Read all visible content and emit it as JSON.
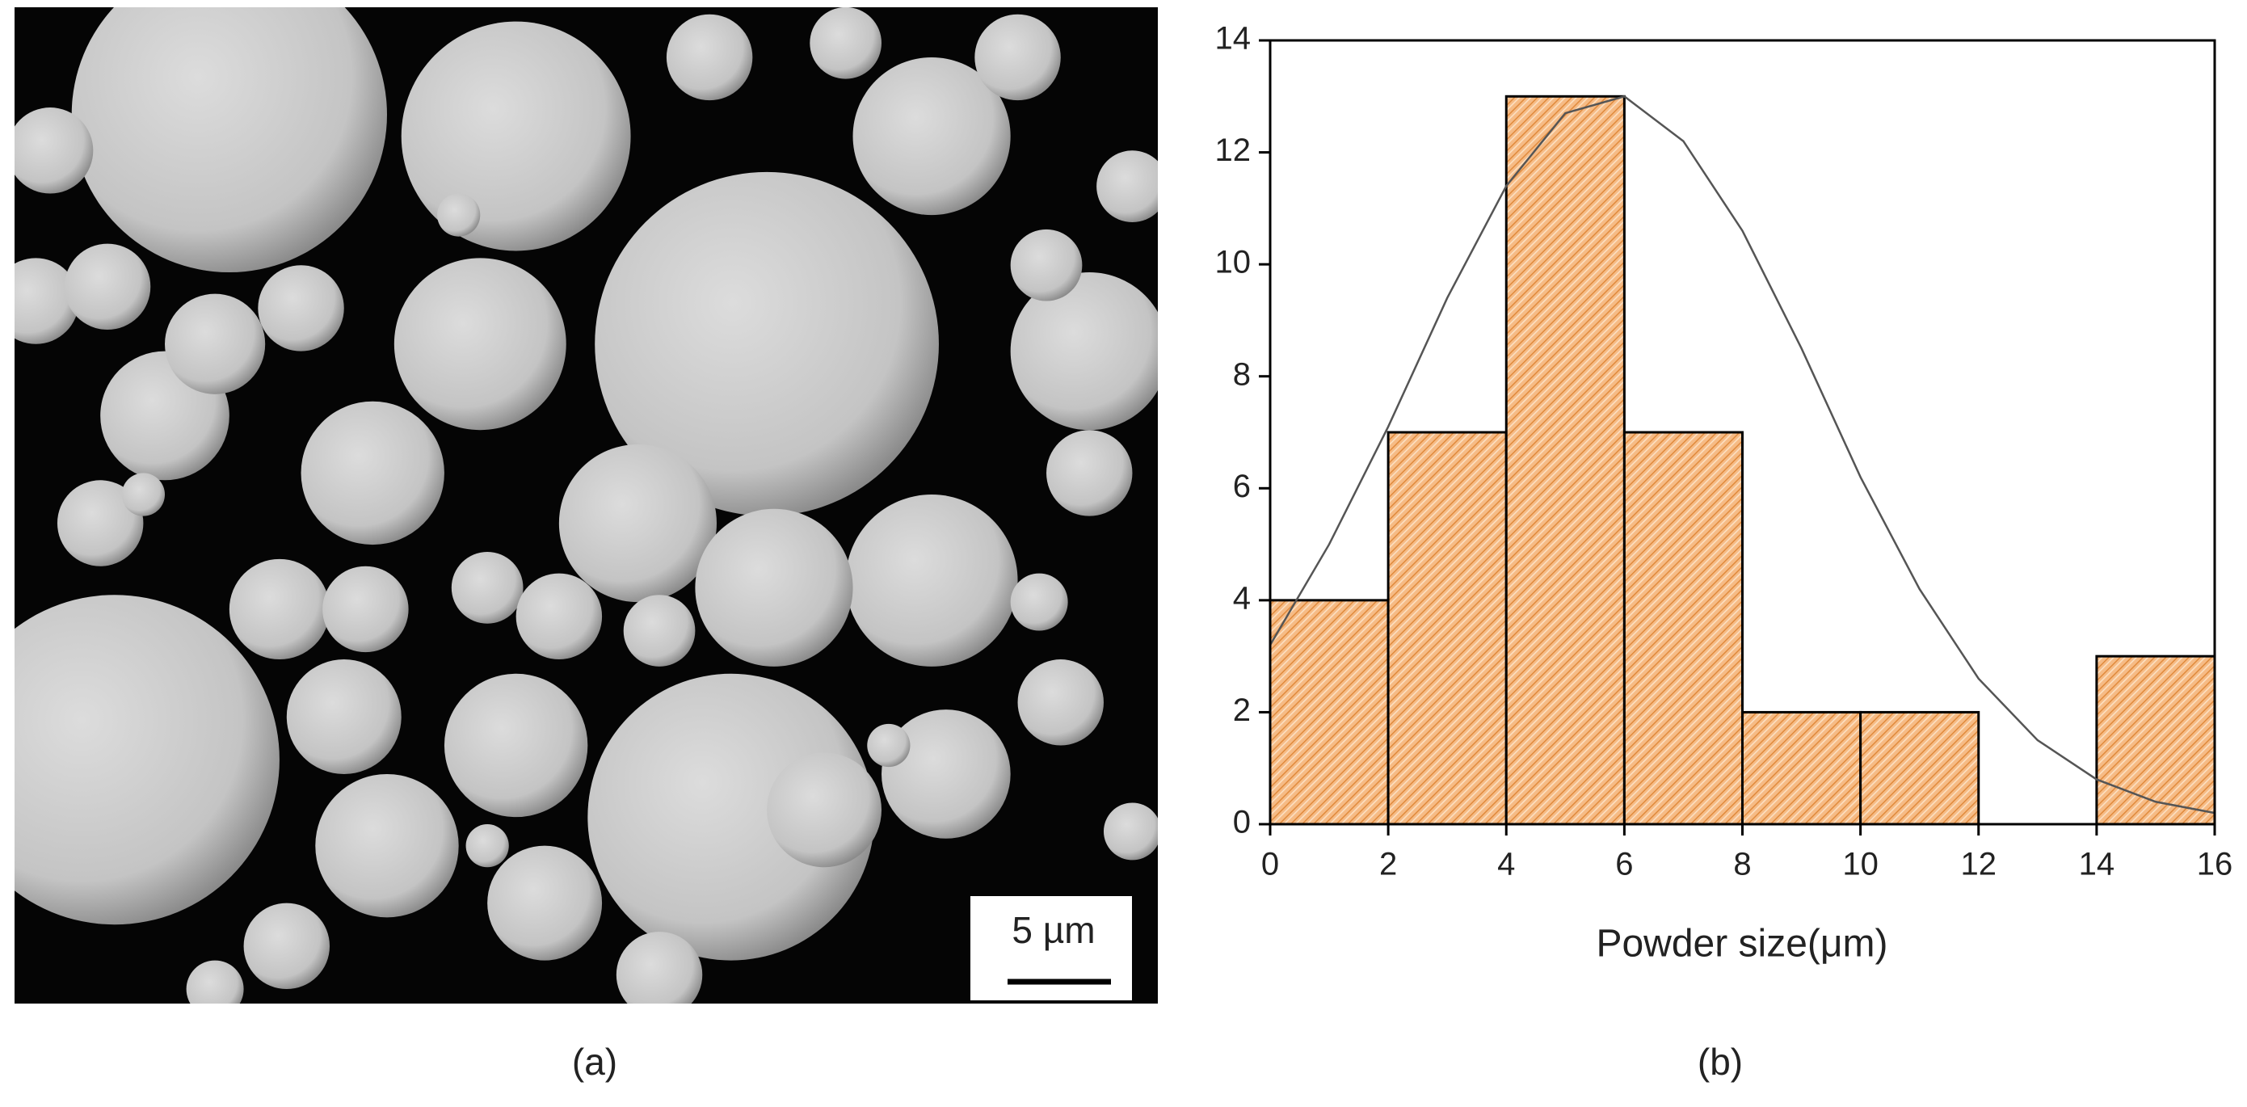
{
  "panel_a": {
    "scale_bar": "5 µm",
    "caption": "(a)"
  },
  "chart_data": {
    "type": "histogram",
    "caption": "(b)",
    "x_label": "Powder size(μm)",
    "bins": [
      0,
      2,
      4,
      6,
      8,
      10,
      12,
      14,
      16
    ],
    "counts": [
      4,
      7,
      13,
      7,
      2,
      2,
      0,
      3
    ],
    "color": "#f6bb85",
    "fit": {
      "x": [
        0,
        1,
        2,
        3,
        4,
        5,
        6,
        7,
        8,
        9,
        10,
        11,
        12,
        13,
        14,
        15,
        16
      ],
      "values": [
        3.2,
        5.0,
        7.1,
        9.4,
        11.4,
        12.7,
        13.0,
        12.2,
        10.6,
        8.5,
        6.2,
        4.2,
        2.6,
        1.5,
        0.8,
        0.4,
        0.2
      ],
      "color": "#555555"
    },
    "xlim": [
      0,
      16
    ],
    "xticks": [
      0,
      2,
      4,
      6,
      8,
      10,
      12,
      14,
      16
    ],
    "ylim": [
      0,
      14
    ],
    "yticks": [
      0,
      2,
      4,
      6,
      8,
      10,
      12,
      14
    ]
  }
}
